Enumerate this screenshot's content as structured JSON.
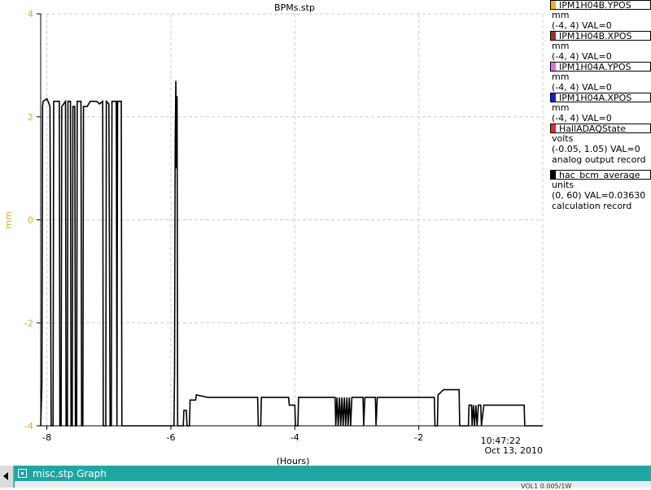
{
  "window": {
    "title": "BPMs.stp"
  },
  "colors": {
    "grid": "#cccccc",
    "ylabel": "#e2a81c",
    "trace": "#000000",
    "ipm1h04b_ypos": "#f2b028",
    "ipm1h04b_xpos": "#a0302b",
    "ipm1h04a_ypos": "#e070e0",
    "ipm1h04a_xpos": "#1222d8",
    "halla_daq_state": "#e32b2b",
    "hac_bcm_average": "#000000",
    "taskbar": "#2aa7a2"
  },
  "legend": [
    {
      "name": "IPM1H04B.YPOS",
      "unit": "mm",
      "range": "(-4, 4) VAL=0",
      "note": "",
      "color": "#f2b028"
    },
    {
      "name": "IPM1H04B.XPOS",
      "unit": "mm",
      "range": "(-4, 4) VAL=0",
      "note": "",
      "color": "#a0302b"
    },
    {
      "name": "IPM1H04A.YPOS",
      "unit": "mm",
      "range": "(-4, 4) VAL=0",
      "note": "",
      "color": "#e070e0"
    },
    {
      "name": "IPM1H04A.XPOS",
      "unit": "mm",
      "range": "(-4, 4) VAL=0",
      "note": "",
      "color": "#1222d8"
    },
    {
      "name": "HallADAQState",
      "unit": "volts",
      "range": "(-0.05, 1.05) VAL=0",
      "note": "analog output record",
      "color": "#e32b2b"
    },
    {
      "name": "hac_bcm_average",
      "unit": "units",
      "range": "(0, 60) VAL=0.03630",
      "note": "calculation record",
      "color": "#000000"
    }
  ],
  "taskbar": {
    "window_label": "misc.stp Graph",
    "status_text": "VOL1 0.005/1W"
  },
  "chart_data": {
    "type": "line",
    "title": "BPMs.stp",
    "xlabel": "(Hours)",
    "ylabel": "mm",
    "xlim": [
      -8.1,
      0
    ],
    "ylim": [
      -4,
      4
    ],
    "xticks": [
      -8,
      -6,
      -4,
      -2
    ],
    "yticks": [
      4,
      2,
      0,
      -2,
      -4
    ],
    "grid": true,
    "legend_position": "right",
    "time_label": "10:47:22",
    "date_label": "Oct 13, 2010",
    "series": [
      {
        "name": "hac_bcm_average",
        "color": "#000000",
        "points": [
          [
            -8.1,
            -4
          ],
          [
            -8.08,
            -3.2
          ],
          [
            -8.07,
            2.2
          ],
          [
            -8.06,
            2.3
          ],
          [
            -8.0,
            2.35
          ],
          [
            -7.98,
            2.3
          ],
          [
            -7.95,
            2.2
          ],
          [
            -7.93,
            -4
          ],
          [
            -7.9,
            -4
          ],
          [
            -7.89,
            2.3
          ],
          [
            -7.8,
            2.3
          ],
          [
            -7.79,
            -4
          ],
          [
            -7.77,
            -4
          ],
          [
            -7.76,
            2.2
          ],
          [
            -7.7,
            2.3
          ],
          [
            -7.69,
            -4
          ],
          [
            -7.67,
            -4
          ],
          [
            -7.66,
            2.3
          ],
          [
            -7.62,
            2.3
          ],
          [
            -7.61,
            -4
          ],
          [
            -7.59,
            -4
          ],
          [
            -7.58,
            2.2
          ],
          [
            -7.55,
            2.2
          ],
          [
            -7.54,
            -4
          ],
          [
            -7.52,
            -4
          ],
          [
            -7.51,
            2.3
          ],
          [
            -7.45,
            2.3
          ],
          [
            -7.44,
            -4
          ],
          [
            -7.42,
            -4
          ],
          [
            -7.41,
            2.2
          ],
          [
            -7.35,
            2.2
          ],
          [
            -7.3,
            2.3
          ],
          [
            -7.2,
            2.3
          ],
          [
            -7.15,
            2.25
          ],
          [
            -7.1,
            2.3
          ],
          [
            -7.09,
            -4
          ],
          [
            -7.05,
            -4
          ],
          [
            -7.04,
            2.3
          ],
          [
            -7.0,
            2.25
          ],
          [
            -6.98,
            -4
          ],
          [
            -6.96,
            -4
          ],
          [
            -6.95,
            2.3
          ],
          [
            -6.9,
            2.3
          ],
          [
            -6.88,
            2.3
          ],
          [
            -6.87,
            -4
          ],
          [
            -6.86,
            2.3
          ],
          [
            -6.8,
            2.3
          ],
          [
            -6.79,
            -4
          ],
          [
            -6.0,
            -4
          ],
          [
            -5.95,
            -4
          ],
          [
            -5.94,
            -3.0
          ],
          [
            -5.93,
            1.5
          ],
          [
            -5.92,
            2.7
          ],
          [
            -5.91,
            1.0
          ],
          [
            -5.9,
            2.4
          ],
          [
            -5.89,
            -4
          ],
          [
            -5.8,
            -4
          ],
          [
            -5.79,
            -3.7
          ],
          [
            -5.75,
            -3.7
          ],
          [
            -5.74,
            -4
          ],
          [
            -5.7,
            -4
          ],
          [
            -5.69,
            -3.5
          ],
          [
            -5.6,
            -3.5
          ],
          [
            -5.59,
            -3.4
          ],
          [
            -5.4,
            -3.45
          ],
          [
            -5.2,
            -3.45
          ],
          [
            -5.0,
            -3.45
          ],
          [
            -4.8,
            -3.45
          ],
          [
            -4.6,
            -3.45
          ],
          [
            -4.59,
            -4
          ],
          [
            -4.55,
            -4
          ],
          [
            -4.54,
            -3.45
          ],
          [
            -4.3,
            -3.45
          ],
          [
            -4.1,
            -3.45
          ],
          [
            -4.09,
            -3.6
          ],
          [
            -4.0,
            -3.6
          ],
          [
            -3.99,
            -4
          ],
          [
            -3.95,
            -4
          ],
          [
            -3.94,
            -3.45
          ],
          [
            -3.5,
            -3.45
          ],
          [
            -3.35,
            -3.45
          ],
          [
            -3.34,
            -4
          ],
          [
            -3.32,
            -3.45
          ],
          [
            -3.3,
            -4
          ],
          [
            -3.28,
            -3.45
          ],
          [
            -3.26,
            -4
          ],
          [
            -3.24,
            -3.45
          ],
          [
            -3.22,
            -4
          ],
          [
            -3.2,
            -3.45
          ],
          [
            -3.18,
            -4
          ],
          [
            -3.16,
            -3.45
          ],
          [
            -3.14,
            -4
          ],
          [
            -3.12,
            -3.45
          ],
          [
            -3.1,
            -4
          ],
          [
            -3.08,
            -3.45
          ],
          [
            -3.0,
            -3.45
          ],
          [
            -2.9,
            -3.45
          ],
          [
            -2.89,
            -4
          ],
          [
            -2.87,
            -3.45
          ],
          [
            -2.7,
            -3.45
          ],
          [
            -2.69,
            -4
          ],
          [
            -2.67,
            -3.45
          ],
          [
            -2.3,
            -3.45
          ],
          [
            -2.0,
            -3.45
          ],
          [
            -1.75,
            -3.45
          ],
          [
            -1.74,
            -4
          ],
          [
            -1.7,
            -4
          ],
          [
            -1.69,
            -3.4
          ],
          [
            -1.6,
            -3.3
          ],
          [
            -1.35,
            -3.3
          ],
          [
            -1.34,
            -4
          ],
          [
            -1.3,
            -4
          ],
          [
            -1.2,
            -4
          ],
          [
            -1.19,
            -3.6
          ],
          [
            -1.15,
            -3.6
          ],
          [
            -1.14,
            -4
          ],
          [
            -1.12,
            -3.6
          ],
          [
            -1.1,
            -4
          ],
          [
            -1.08,
            -3.6
          ],
          [
            -1.06,
            -4
          ],
          [
            -1.04,
            -3.6
          ],
          [
            -1.0,
            -3.6
          ],
          [
            -0.99,
            -4
          ],
          [
            -0.95,
            -3.6
          ],
          [
            -0.3,
            -3.6
          ],
          [
            -0.29,
            -4
          ],
          [
            0,
            -4
          ]
        ]
      }
    ]
  }
}
